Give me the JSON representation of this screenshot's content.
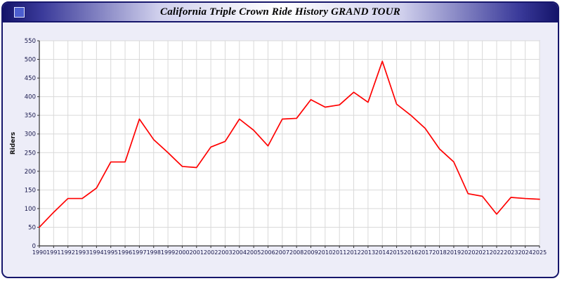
{
  "header": {
    "title": "California Triple Crown Ride History GRAND TOUR"
  },
  "colors": {
    "line": "#ff0000",
    "panel_background": "#ededf8",
    "window_border": "#16166b",
    "grid": "#d9d9d9",
    "axis": "#333333",
    "tick_label": "#15154a"
  },
  "chart_data": {
    "type": "line",
    "title": "California Triple Crown Ride History GRAND TOUR",
    "xlabel": "",
    "ylabel": "Riders",
    "ylim": [
      0,
      550
    ],
    "ytick_step": 50,
    "grid": true,
    "legend_position": "none",
    "categories": [
      "1990",
      "1991",
      "1992",
      "1993",
      "1994",
      "1995",
      "1996",
      "1997",
      "1998",
      "1999",
      "2000",
      "2001",
      "2002",
      "2003",
      "2004",
      "2005",
      "2006",
      "2007",
      "2008",
      "2009",
      "2010",
      "2011",
      "2012",
      "2013",
      "2014",
      "2015",
      "2016",
      "2017",
      "2018",
      "2019",
      "2020",
      "2021",
      "2022",
      "2023",
      "2024",
      "2025"
    ],
    "series": [
      {
        "name": "Riders",
        "color": "#ff0000",
        "values": [
          50,
          90,
          127,
          127,
          155,
          225,
          225,
          340,
          285,
          250,
          213,
          210,
          265,
          280,
          340,
          310,
          268,
          340,
          342,
          392,
          372,
          378,
          412,
          385,
          495,
          380,
          350,
          315,
          260,
          225,
          140,
          133,
          85,
          130,
          127,
          125
        ]
      }
    ]
  }
}
